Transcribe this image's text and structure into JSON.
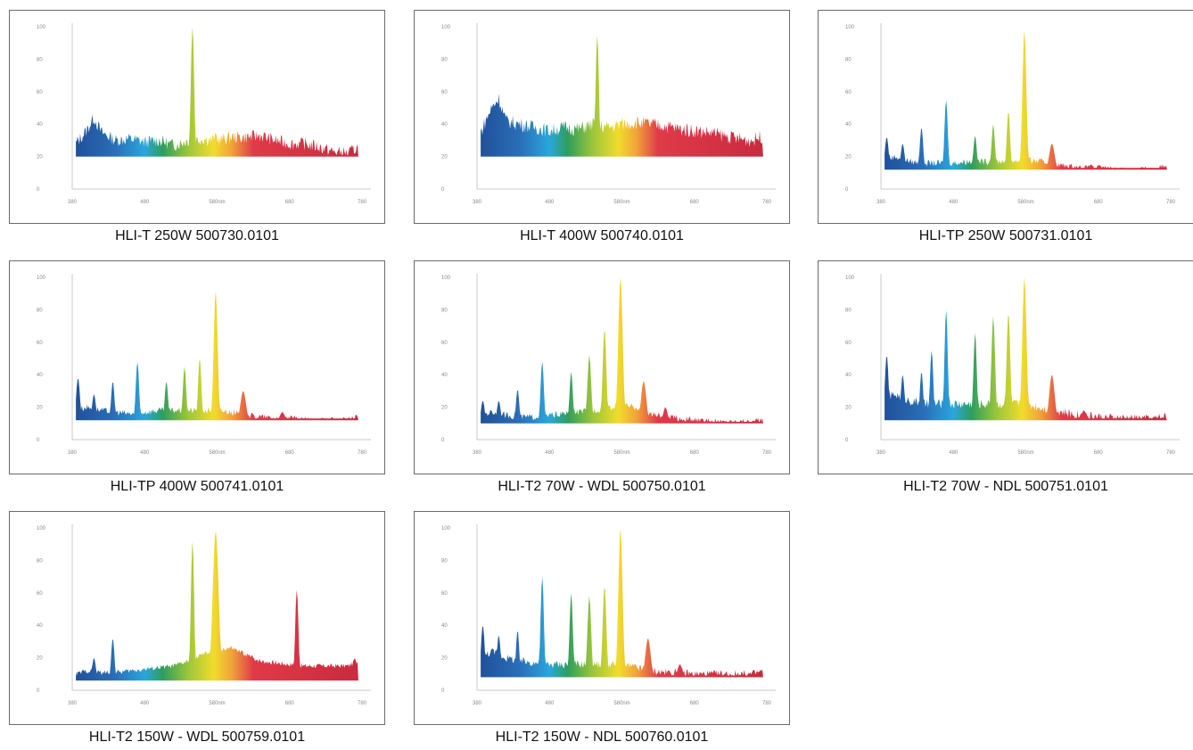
{
  "colors": {
    "border": "#6b6b6b",
    "axis": "#c9c9c9",
    "tick": "#8a8a8a"
  },
  "spectrum_stops": [
    {
      "nm": 380,
      "color": "#1f4e96"
    },
    {
      "nm": 440,
      "color": "#2a6fb8"
    },
    {
      "nm": 480,
      "color": "#2aa6dc"
    },
    {
      "nm": 505,
      "color": "#2e9e5e"
    },
    {
      "nm": 540,
      "color": "#9cc63a"
    },
    {
      "nm": 575,
      "color": "#f1dc2c"
    },
    {
      "nm": 600,
      "color": "#f0a43a"
    },
    {
      "nm": 630,
      "color": "#e03a48"
    },
    {
      "nm": 780,
      "color": "#c82a3e"
    }
  ],
  "chart_data": [
    {
      "type": "area",
      "caption": "HLI-T 250W 500730.0101",
      "xlim": [
        380,
        780
      ],
      "ylim": [
        0,
        100
      ],
      "x_ticks": [
        "380",
        "480",
        "580nm",
        "680",
        "780"
      ],
      "y_ticks": [
        "100",
        "80",
        "60",
        "40",
        "20",
        "0"
      ],
      "base": 20,
      "noise": 8,
      "ctrl": [
        [
          385,
          28
        ],
        [
          400,
          36
        ],
        [
          410,
          44
        ],
        [
          420,
          35
        ],
        [
          440,
          30
        ],
        [
          460,
          31
        ],
        [
          480,
          29
        ],
        [
          500,
          30
        ],
        [
          520,
          27
        ],
        [
          540,
          30
        ],
        [
          560,
          31
        ],
        [
          580,
          30
        ],
        [
          600,
          32
        ],
        [
          620,
          32
        ],
        [
          640,
          33
        ],
        [
          660,
          30
        ],
        [
          680,
          28
        ],
        [
          700,
          28
        ],
        [
          720,
          26
        ],
        [
          740,
          23
        ],
        [
          760,
          22
        ],
        [
          775,
          26
        ]
      ],
      "peaks": [
        [
          546,
          100,
          2.2
        ],
        [
          578,
          35,
          2.5
        ]
      ]
    },
    {
      "type": "area",
      "caption": "HLI-T 400W 500740.0101",
      "xlim": [
        380,
        780
      ],
      "ylim": [
        0,
        100
      ],
      "x_ticks": [
        "380",
        "480",
        "580nm",
        "680",
        "780"
      ],
      "y_ticks": [
        "100",
        "80",
        "60",
        "40",
        "20",
        "0"
      ],
      "base": 20,
      "noise": 9,
      "ctrl": [
        [
          385,
          35
        ],
        [
          400,
          50
        ],
        [
          410,
          56
        ],
        [
          420,
          42
        ],
        [
          440,
          40
        ],
        [
          460,
          38
        ],
        [
          480,
          36
        ],
        [
          500,
          38
        ],
        [
          520,
          37
        ],
        [
          540,
          40
        ],
        [
          560,
          38
        ],
        [
          580,
          40
        ],
        [
          600,
          41
        ],
        [
          620,
          40
        ],
        [
          640,
          39
        ],
        [
          660,
          37
        ],
        [
          680,
          36
        ],
        [
          700,
          35
        ],
        [
          720,
          33
        ],
        [
          740,
          31
        ],
        [
          760,
          30
        ],
        [
          775,
          33
        ]
      ],
      "peaks": [
        [
          546,
          95,
          2.2
        ],
        [
          578,
          42,
          2.5
        ]
      ]
    },
    {
      "type": "area",
      "caption": "HLI-TP 250W 500731.0101",
      "xlim": [
        380,
        780
      ],
      "ylim": [
        0,
        100
      ],
      "x_ticks": [
        "380",
        "480",
        "580nm",
        "680",
        "780"
      ],
      "y_ticks": [
        "100",
        "80",
        "60",
        "40",
        "20",
        "0"
      ],
      "base": 12,
      "noise": 4,
      "ctrl": [
        [
          385,
          18
        ],
        [
          400,
          20
        ],
        [
          420,
          17
        ],
        [
          440,
          16
        ],
        [
          460,
          16
        ],
        [
          480,
          16
        ],
        [
          500,
          17
        ],
        [
          520,
          17
        ],
        [
          540,
          17
        ],
        [
          560,
          17
        ],
        [
          580,
          18
        ],
        [
          600,
          17
        ],
        [
          620,
          15
        ],
        [
          640,
          14
        ],
        [
          660,
          13
        ],
        [
          680,
          13
        ],
        [
          700,
          12
        ],
        [
          720,
          12
        ],
        [
          740,
          12
        ],
        [
          760,
          12
        ],
        [
          775,
          15
        ]
      ],
      "peaks": [
        [
          388,
          32,
          2.5
        ],
        [
          410,
          28,
          2.5
        ],
        [
          436,
          38,
          2.2
        ],
        [
          470,
          55,
          2.2
        ],
        [
          510,
          33,
          2.2
        ],
        [
          535,
          40,
          2.2
        ],
        [
          556,
          48,
          2.2
        ],
        [
          578,
          98,
          2.6
        ],
        [
          616,
          28,
          3.5
        ],
        [
          670,
          15,
          3
        ]
      ]
    },
    {
      "type": "area",
      "caption": "HLI-TP 400W 500741.0101",
      "xlim": [
        380,
        780
      ],
      "ylim": [
        0,
        100
      ],
      "x_ticks": [
        "380",
        "480",
        "580nm",
        "680",
        "780"
      ],
      "y_ticks": [
        "100",
        "80",
        "60",
        "40",
        "20",
        "0"
      ],
      "base": 12,
      "noise": 4,
      "ctrl": [
        [
          385,
          18
        ],
        [
          400,
          20
        ],
        [
          420,
          18
        ],
        [
          440,
          17
        ],
        [
          460,
          16
        ],
        [
          480,
          17
        ],
        [
          500,
          18
        ],
        [
          520,
          18
        ],
        [
          540,
          18
        ],
        [
          560,
          18
        ],
        [
          580,
          18
        ],
        [
          600,
          17
        ],
        [
          620,
          15
        ],
        [
          640,
          14
        ],
        [
          660,
          13
        ],
        [
          680,
          13
        ],
        [
          700,
          12
        ],
        [
          720,
          12
        ],
        [
          740,
          12
        ],
        [
          760,
          12
        ],
        [
          775,
          14
        ]
      ],
      "peaks": [
        [
          388,
          38,
          2.5
        ],
        [
          410,
          28,
          2.5
        ],
        [
          436,
          36,
          2.2
        ],
        [
          470,
          48,
          2.2
        ],
        [
          510,
          36,
          2.2
        ],
        [
          535,
          45,
          2.2
        ],
        [
          556,
          50,
          2.2
        ],
        [
          578,
          92,
          2.6
        ],
        [
          616,
          30,
          3.5
        ],
        [
          670,
          17,
          3
        ]
      ]
    },
    {
      "type": "area",
      "caption": "HLI-T2 70W - WDL 500750.0101",
      "xlim": [
        380,
        780
      ],
      "ylim": [
        0,
        100
      ],
      "x_ticks": [
        "380",
        "480",
        "580nm",
        "680",
        "780"
      ],
      "y_ticks": [
        "100",
        "80",
        "60",
        "40",
        "20",
        "0"
      ],
      "base": 10,
      "noise": 4,
      "ctrl": [
        [
          385,
          15
        ],
        [
          400,
          17
        ],
        [
          420,
          15
        ],
        [
          440,
          14
        ],
        [
          460,
          14
        ],
        [
          480,
          15
        ],
        [
          500,
          16
        ],
        [
          520,
          17
        ],
        [
          540,
          18
        ],
        [
          560,
          19
        ],
        [
          580,
          21
        ],
        [
          600,
          20
        ],
        [
          620,
          16
        ],
        [
          640,
          14
        ],
        [
          660,
          13
        ],
        [
          680,
          12
        ],
        [
          700,
          11
        ],
        [
          720,
          11
        ],
        [
          740,
          11
        ],
        [
          760,
          11
        ],
        [
          775,
          12
        ]
      ],
      "peaks": [
        [
          388,
          24,
          2.5
        ],
        [
          410,
          24,
          2.5
        ],
        [
          436,
          31,
          2.2
        ],
        [
          470,
          48,
          2.2
        ],
        [
          510,
          42,
          2.2
        ],
        [
          535,
          52,
          2.5
        ],
        [
          556,
          68,
          2.5
        ],
        [
          578,
          100,
          3
        ],
        [
          610,
          36,
          3.5
        ],
        [
          640,
          20,
          3
        ]
      ]
    },
    {
      "type": "area",
      "caption": "HLI-T2 70W - NDL 500751.0101",
      "xlim": [
        380,
        780
      ],
      "ylim": [
        0,
        100
      ],
      "x_ticks": [
        "380",
        "480",
        "580nm",
        "680",
        "780"
      ],
      "y_ticks": [
        "100",
        "80",
        "60",
        "40",
        "20",
        "0"
      ],
      "base": 12,
      "noise": 6,
      "ctrl": [
        [
          385,
          25
        ],
        [
          400,
          28
        ],
        [
          420,
          24
        ],
        [
          440,
          22
        ],
        [
          460,
          22
        ],
        [
          480,
          22
        ],
        [
          500,
          22
        ],
        [
          520,
          22
        ],
        [
          540,
          22
        ],
        [
          560,
          22
        ],
        [
          580,
          22
        ],
        [
          600,
          20
        ],
        [
          620,
          18
        ],
        [
          640,
          16
        ],
        [
          660,
          15
        ],
        [
          680,
          14
        ],
        [
          700,
          13
        ],
        [
          720,
          13
        ],
        [
          740,
          13
        ],
        [
          760,
          13
        ],
        [
          775,
          15
        ]
      ],
      "peaks": [
        [
          388,
          52,
          2.5
        ],
        [
          410,
          40,
          2.5
        ],
        [
          436,
          42,
          2.2
        ],
        [
          450,
          55,
          2.2
        ],
        [
          470,
          80,
          2.2
        ],
        [
          510,
          66,
          2.2
        ],
        [
          535,
          76,
          2.5
        ],
        [
          556,
          78,
          2.5
        ],
        [
          578,
          100,
          2.8
        ],
        [
          616,
          40,
          3.5
        ],
        [
          660,
          18,
          3
        ]
      ]
    },
    {
      "type": "area",
      "caption": "HLI-T2 150W - WDL 500759.0101",
      "xlim": [
        380,
        780
      ],
      "ylim": [
        0,
        100
      ],
      "x_ticks": [
        "380",
        "480",
        "580nm",
        "680",
        "780"
      ],
      "y_ticks": [
        "100",
        "80",
        "60",
        "40",
        "20",
        "0"
      ],
      "base": 6,
      "noise": 3,
      "ctrl": [
        [
          385,
          10
        ],
        [
          400,
          12
        ],
        [
          420,
          11
        ],
        [
          440,
          11
        ],
        [
          460,
          12
        ],
        [
          480,
          13
        ],
        [
          500,
          14
        ],
        [
          520,
          15
        ],
        [
          540,
          18
        ],
        [
          560,
          22
        ],
        [
          580,
          25
        ],
        [
          600,
          26
        ],
        [
          620,
          22
        ],
        [
          640,
          18
        ],
        [
          660,
          17
        ],
        [
          680,
          16
        ],
        [
          700,
          15
        ],
        [
          720,
          15
        ],
        [
          740,
          15
        ],
        [
          760,
          15
        ],
        [
          775,
          18
        ]
      ],
      "peaks": [
        [
          410,
          20,
          2.5
        ],
        [
          436,
          32,
          2.2
        ],
        [
          546,
          92,
          2.2
        ],
        [
          578,
          98,
          4
        ],
        [
          690,
          62,
          2.2
        ],
        [
          770,
          20,
          2.5
        ]
      ]
    },
    {
      "type": "area",
      "caption": "HLI-T2 150W - NDL 500760.0101",
      "xlim": [
        380,
        780
      ],
      "ylim": [
        0,
        100
      ],
      "x_ticks": [
        "380",
        "480",
        "580nm",
        "680",
        "780"
      ],
      "y_ticks": [
        "100",
        "80",
        "60",
        "40",
        "20",
        "0"
      ],
      "base": 8,
      "noise": 5,
      "ctrl": [
        [
          385,
          20
        ],
        [
          400,
          24
        ],
        [
          420,
          20
        ],
        [
          440,
          18
        ],
        [
          460,
          17
        ],
        [
          480,
          16
        ],
        [
          500,
          16
        ],
        [
          520,
          16
        ],
        [
          540,
          16
        ],
        [
          560,
          16
        ],
        [
          580,
          16
        ],
        [
          600,
          14
        ],
        [
          620,
          12
        ],
        [
          640,
          11
        ],
        [
          660,
          11
        ],
        [
          680,
          10
        ],
        [
          700,
          10
        ],
        [
          720,
          10
        ],
        [
          740,
          10
        ],
        [
          760,
          10
        ],
        [
          775,
          12
        ]
      ],
      "peaks": [
        [
          388,
          40,
          2.5
        ],
        [
          410,
          34,
          2.5
        ],
        [
          436,
          37,
          2.2
        ],
        [
          470,
          70,
          2.2
        ],
        [
          510,
          60,
          2.2
        ],
        [
          535,
          58,
          2.5
        ],
        [
          556,
          64,
          2.5
        ],
        [
          578,
          100,
          2.8
        ],
        [
          616,
          32,
          3.5
        ],
        [
          660,
          16,
          3
        ]
      ]
    }
  ]
}
